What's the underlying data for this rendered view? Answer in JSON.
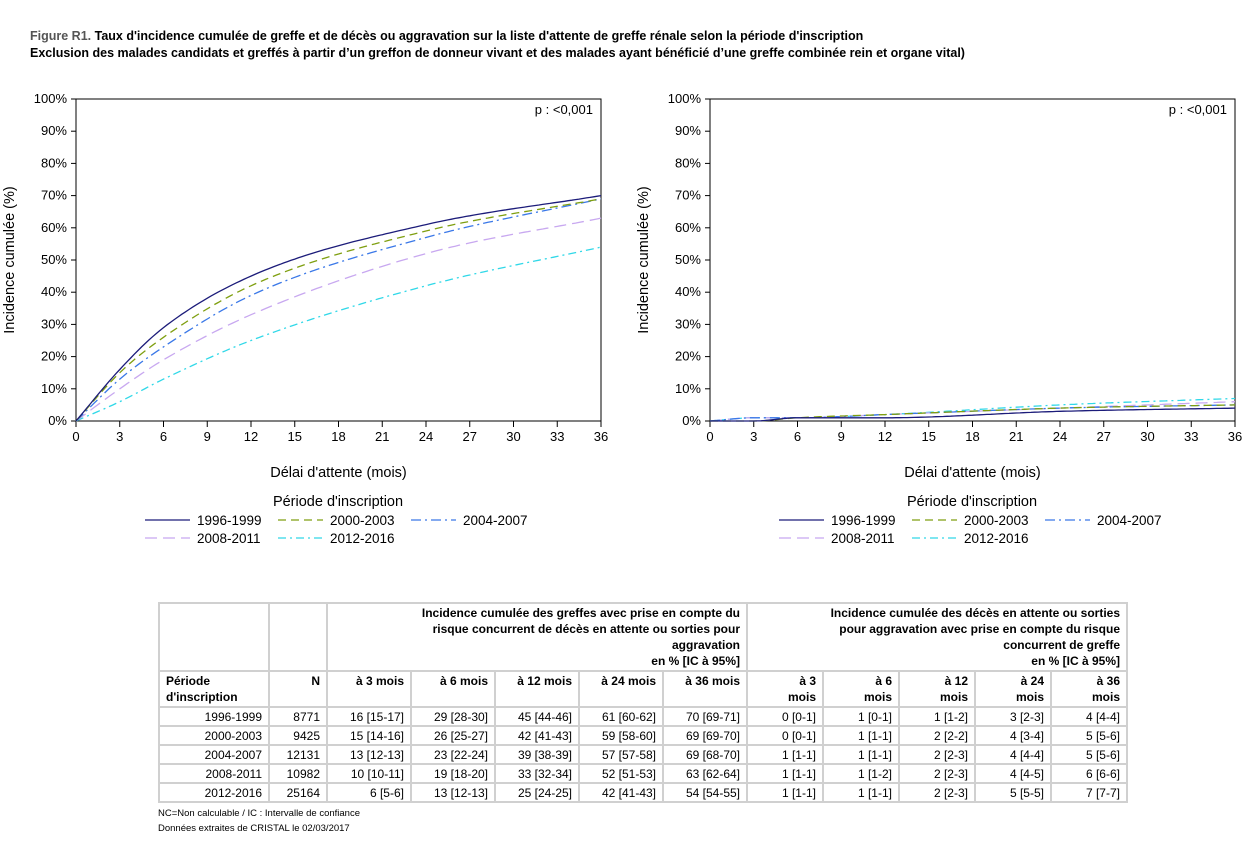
{
  "title": {
    "figure_label": "Figure R1.",
    "line1": "Taux d'incidence cumulée de greffe et de décès ou aggravation sur la liste d'attente de greffe rénale selon la période d'inscription",
    "line2": "Exclusion des malades candidats et greffés à partir d’un greffon de donneur vivant et des malades ayant bénéficié d’une greffe combinée rein et organe vital)"
  },
  "chart_data": [
    {
      "type": "line",
      "xlabel": "Délai d'attente (mois)",
      "ylabel": "Incidence cumulée (%)",
      "annotation": "p : <0,001",
      "xlim": [
        0,
        36
      ],
      "ylim": [
        0,
        100
      ],
      "xticks": [
        0,
        3,
        6,
        9,
        12,
        15,
        18,
        21,
        24,
        27,
        30,
        33,
        36
      ],
      "yticks": [
        "0%",
        "10%",
        "20%",
        "30%",
        "40%",
        "50%",
        "60%",
        "70%",
        "80%",
        "90%",
        "100%"
      ],
      "legend_title": "Période d'inscription",
      "legend_position": "bottom",
      "x": [
        0,
        3,
        6,
        12,
        24,
        36
      ],
      "series": [
        {
          "name": "1996-1999",
          "color": "#1c1c7a",
          "dash": "",
          "values": [
            0,
            16,
            29,
            45,
            61,
            70
          ]
        },
        {
          "name": "2000-2003",
          "color": "#7f9f10",
          "dash": "8,5",
          "values": [
            0,
            15,
            26,
            42,
            59,
            69
          ]
        },
        {
          "name": "2004-2007",
          "color": "#3a78e8",
          "dash": "10,4,2,4",
          "values": [
            0,
            13,
            23,
            39,
            57,
            69
          ]
        },
        {
          "name": "2008-2011",
          "color": "#c8a8f0",
          "dash": "12,6",
          "values": [
            0,
            10,
            19,
            33,
            52,
            63
          ]
        },
        {
          "name": "2012-2016",
          "color": "#30d8e8",
          "dash": "8,4,2,4",
          "values": [
            0,
            6,
            13,
            25,
            42,
            54
          ]
        }
      ]
    },
    {
      "type": "line",
      "xlabel": "Délai d'attente (mois)",
      "ylabel": "Incidence cumulée (%)",
      "annotation": "p : <0,001",
      "xlim": [
        0,
        36
      ],
      "ylim": [
        0,
        100
      ],
      "xticks": [
        0,
        3,
        6,
        9,
        12,
        15,
        18,
        21,
        24,
        27,
        30,
        33,
        36
      ],
      "yticks": [
        "0%",
        "10%",
        "20%",
        "30%",
        "40%",
        "50%",
        "60%",
        "70%",
        "80%",
        "90%",
        "100%"
      ],
      "legend_title": "Période d'inscription",
      "legend_position": "bottom",
      "x": [
        0,
        3,
        6,
        12,
        24,
        36
      ],
      "series": [
        {
          "name": "1996-1999",
          "color": "#1c1c7a",
          "dash": "",
          "values": [
            0,
            0,
            1,
            1,
            3,
            4
          ]
        },
        {
          "name": "2000-2003",
          "color": "#7f9f10",
          "dash": "8,5",
          "values": [
            0,
            0,
            1,
            2,
            4,
            5
          ]
        },
        {
          "name": "2004-2007",
          "color": "#3a78e8",
          "dash": "10,4,2,4",
          "values": [
            0,
            1,
            1,
            2,
            4,
            5
          ]
        },
        {
          "name": "2008-2011",
          "color": "#c8a8f0",
          "dash": "12,6",
          "values": [
            0,
            1,
            1,
            2,
            4,
            6
          ]
        },
        {
          "name": "2012-2016",
          "color": "#30d8e8",
          "dash": "8,4,2,4",
          "values": [
            0,
            1,
            1,
            2,
            5,
            7
          ]
        }
      ]
    }
  ],
  "table": {
    "group1": [
      "Incidence cumulée des greffes avec prise en compte du",
      "risque concurrent de décès en attente ou sorties pour",
      "aggravation",
      "en % [IC à 95%]"
    ],
    "group2": [
      "Incidence cumulée des décès en attente ou sorties",
      "pour aggravation avec prise en compte du risque",
      "concurrent de greffe",
      "en % [IC à 95%]"
    ],
    "col_period": [
      "Période",
      "d'inscription"
    ],
    "col_n": "N",
    "cols1": [
      "à 3 mois",
      "à 6 mois",
      "à 12 mois",
      "à 24 mois",
      "à 36 mois"
    ],
    "cols2": [
      [
        "à 3",
        "mois"
      ],
      [
        "à 6",
        "mois"
      ],
      [
        "à 12",
        "mois"
      ],
      [
        "à 24",
        "mois"
      ],
      [
        "à 36",
        "mois"
      ]
    ],
    "rows": [
      [
        "1996-1999",
        "8771",
        "16 [15-17]",
        "29 [28-30]",
        "45 [44-46]",
        "61 [60-62]",
        "70 [69-71]",
        "0 [0-1]",
        "1 [0-1]",
        "1 [1-2]",
        "3 [2-3]",
        "4 [4-4]"
      ],
      [
        "2000-2003",
        "9425",
        "15 [14-16]",
        "26 [25-27]",
        "42 [41-43]",
        "59 [58-60]",
        "69 [69-70]",
        "0 [0-1]",
        "1 [1-1]",
        "2 [2-2]",
        "4 [3-4]",
        "5 [5-6]"
      ],
      [
        "2004-2007",
        "12131",
        "13 [12-13]",
        "23 [22-24]",
        "39 [38-39]",
        "57 [57-58]",
        "69 [68-70]",
        "1 [1-1]",
        "1 [1-1]",
        "2 [2-3]",
        "4 [4-4]",
        "5 [5-6]"
      ],
      [
        "2008-2011",
        "10982",
        "10 [10-11]",
        "19 [18-20]",
        "33 [32-34]",
        "52 [51-53]",
        "63 [62-64]",
        "1 [1-1]",
        "1 [1-2]",
        "2 [2-3]",
        "4 [4-5]",
        "6 [6-6]"
      ],
      [
        "2012-2016",
        "25164",
        "6 [5-6]",
        "13 [12-13]",
        "25 [24-25]",
        "42 [41-43]",
        "54 [54-55]",
        "1 [1-1]",
        "1 [1-1]",
        "2 [2-3]",
        "5 [5-5]",
        "7 [7-7]"
      ]
    ]
  },
  "footnotes": [
    "NC=Non calculable / IC : Intervalle de confiance",
    "Données extraites de CRISTAL le 02/03/2017"
  ]
}
